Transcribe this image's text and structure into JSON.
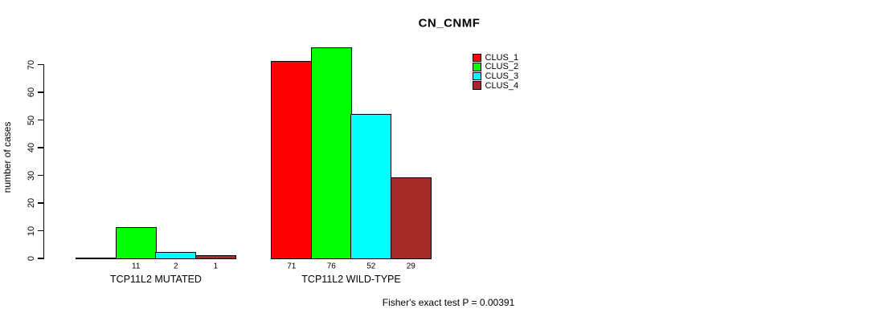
{
  "title": "CN_CNMF",
  "chart_data": {
    "type": "bar",
    "title": "CN_CNMF",
    "xlabel": "",
    "ylabel": "number of cases",
    "ylim": [
      0,
      70
    ],
    "yticks": [
      0,
      10,
      20,
      30,
      40,
      50,
      60,
      70
    ],
    "grid": false,
    "legend_position": "top-right",
    "categories": [
      "TCP11L2 MUTATED",
      "TCP11L2 WILD-TYPE"
    ],
    "series": [
      {
        "name": "CLUS_1",
        "color": "#ff0000",
        "values": [
          0,
          71
        ]
      },
      {
        "name": "CLUS_2",
        "color": "#00ff00",
        "values": [
          11,
          76
        ]
      },
      {
        "name": "CLUS_3",
        "color": "#00ffff",
        "values": [
          2,
          52
        ]
      },
      {
        "name": "CLUS_4",
        "color": "#a52a2a",
        "values": [
          1,
          29
        ]
      }
    ],
    "bar_value_labels": [
      [
        "",
        "11",
        "2",
        "1"
      ],
      [
        "71",
        "76",
        "52",
        "29"
      ]
    ],
    "annotation": "Fisher's exact test P = 0.00391"
  }
}
